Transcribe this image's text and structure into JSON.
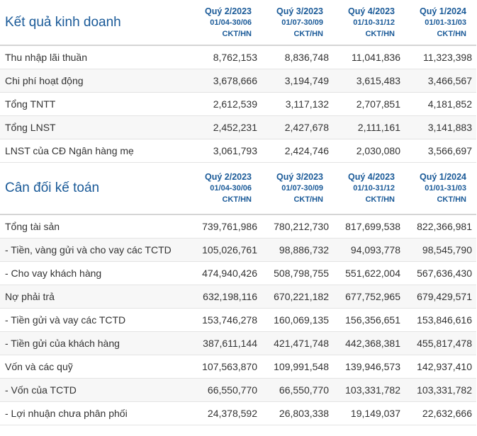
{
  "sections": [
    {
      "title": "Kết quả kinh doanh",
      "periods": [
        {
          "quarter": "Quý 2/2023",
          "range": "01/04-30/06",
          "unit": "CKT/HN"
        },
        {
          "quarter": "Quý 3/2023",
          "range": "01/07-30/09",
          "unit": "CKT/HN"
        },
        {
          "quarter": "Quý 4/2023",
          "range": "01/10-31/12",
          "unit": "CKT/HN"
        },
        {
          "quarter": "Quý 1/2024",
          "range": "01/01-31/03",
          "unit": "CKT/HN"
        }
      ],
      "rows": [
        {
          "label": "Thu nhập lãi thuần",
          "values": [
            "8,762,153",
            "8,836,748",
            "11,041,836",
            "11,323,398"
          ]
        },
        {
          "label": "Chi phí hoạt động",
          "values": [
            "3,678,666",
            "3,194,749",
            "3,615,483",
            "3,466,567"
          ]
        },
        {
          "label": "Tổng TNTT",
          "values": [
            "2,612,539",
            "3,117,132",
            "2,707,851",
            "4,181,852"
          ]
        },
        {
          "label": "Tổng LNST",
          "values": [
            "2,452,231",
            "2,427,678",
            "2,111,161",
            "3,141,883"
          ]
        },
        {
          "label": "LNST của CĐ Ngân hàng mẹ",
          "values": [
            "3,061,793",
            "2,424,746",
            "2,030,080",
            "3,566,697"
          ]
        }
      ]
    },
    {
      "title": "Cân đối kế toán",
      "periods": [
        {
          "quarter": "Quý 2/2023",
          "range": "01/04-30/06",
          "unit": "CKT/HN"
        },
        {
          "quarter": "Quý 3/2023",
          "range": "01/07-30/09",
          "unit": "CKT/HN"
        },
        {
          "quarter": "Quý 4/2023",
          "range": "01/10-31/12",
          "unit": "CKT/HN"
        },
        {
          "quarter": "Quý 1/2024",
          "range": "01/01-31/03",
          "unit": "CKT/HN"
        }
      ],
      "rows": [
        {
          "label": "Tổng tài sản",
          "values": [
            "739,761,986",
            "780,212,730",
            "817,699,538",
            "822,366,981"
          ]
        },
        {
          "label": "- Tiền, vàng gửi và cho vay các TCTD",
          "values": [
            "105,026,761",
            "98,886,732",
            "94,093,778",
            "98,545,790"
          ]
        },
        {
          "label": "- Cho vay khách hàng",
          "values": [
            "474,940,426",
            "508,798,755",
            "551,622,004",
            "567,636,430"
          ]
        },
        {
          "label": "Nợ phải trả",
          "values": [
            "632,198,116",
            "670,221,182",
            "677,752,965",
            "679,429,571"
          ]
        },
        {
          "label": "- Tiền gửi và vay các TCTD",
          "values": [
            "153,746,278",
            "160,069,135",
            "156,356,651",
            "153,846,616"
          ]
        },
        {
          "label": "- Tiền gửi của khách hàng",
          "values": [
            "387,611,144",
            "421,471,748",
            "442,368,381",
            "455,817,478"
          ]
        },
        {
          "label": "Vốn và các quỹ",
          "values": [
            "107,563,870",
            "109,991,548",
            "139,946,573",
            "142,937,410"
          ]
        },
        {
          "label": "- Vốn của TCTD",
          "values": [
            "66,550,770",
            "66,550,770",
            "103,331,782",
            "103,331,782"
          ]
        },
        {
          "label": "- Lợi nhuận chưa phân phối",
          "values": [
            "24,378,592",
            "26,803,338",
            "19,149,037",
            "22,632,666"
          ]
        }
      ]
    }
  ]
}
